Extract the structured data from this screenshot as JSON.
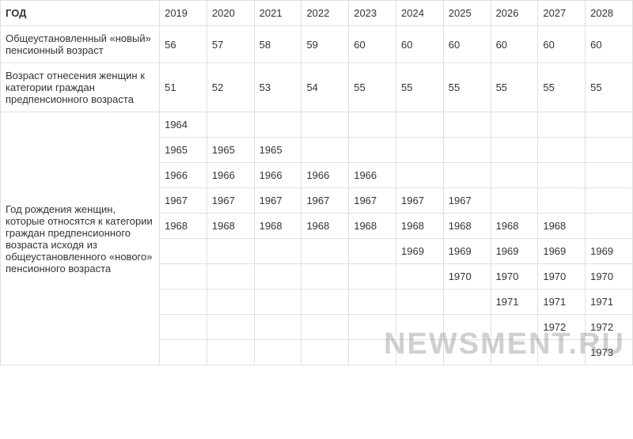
{
  "watermark": "NEWSMENT.RU",
  "table": {
    "header_label": "ГОД",
    "years": [
      "2019",
      "2020",
      "2021",
      "2022",
      "2023",
      "2024",
      "2025",
      "2026",
      "2027",
      "2028"
    ],
    "row_new_age": {
      "label": "Общеустановленный «новый» пенсионный возраст",
      "values": [
        "56",
        "57",
        "58",
        "59",
        "60",
        "60",
        "60",
        "60",
        "60",
        "60"
      ]
    },
    "row_preretirement_age": {
      "label": "Возраст отнесения женщин  к категории граждан предпенсионного возраста",
      "values": [
        "51",
        "52",
        "53",
        "54",
        "55",
        "55",
        "55",
        "55",
        "55",
        "55"
      ]
    },
    "birth_year_block": {
      "label": "Год рождения женщин, которые относятся к категории граждан предпенсионного возраста исходя из общеустановленного «нового» пенсионного возраста",
      "rows": [
        [
          "1964",
          "",
          "",
          "",
          "",
          "",
          "",
          "",
          "",
          ""
        ],
        [
          "1965",
          "1965",
          "1965",
          "",
          "",
          "",
          "",
          "",
          "",
          ""
        ],
        [
          "1966",
          "1966",
          "1966",
          "1966",
          "1966",
          "",
          "",
          "",
          "",
          ""
        ],
        [
          "1967",
          "1967",
          "1967",
          "1967",
          "1967",
          "1967",
          "1967",
          "",
          "",
          ""
        ],
        [
          "1968",
          "1968",
          "1968",
          "1968",
          "1968",
          "1968",
          "1968",
          "1968",
          "1968",
          ""
        ],
        [
          "",
          "",
          "",
          "",
          "",
          "1969",
          "1969",
          "1969",
          "1969",
          "1969"
        ],
        [
          "",
          "",
          "",
          "",
          "",
          "",
          "1970",
          "1970",
          "1970",
          "1970"
        ],
        [
          "",
          "",
          "",
          "",
          "",
          "",
          "",
          "1971",
          "1971",
          "1971"
        ],
        [
          "",
          "",
          "",
          "",
          "",
          "",
          "",
          "",
          "1972",
          "1972"
        ],
        [
          "",
          "",
          "",
          "",
          "",
          "",
          "",
          "",
          "",
          "1973"
        ]
      ]
    }
  },
  "styles": {
    "border_color": "#e0e0e0",
    "text_color": "#333333",
    "background_color": "#ffffff",
    "font_size_pt": 13,
    "watermark_color": "rgba(120,120,120,0.35)",
    "watermark_fontsize": 38
  }
}
